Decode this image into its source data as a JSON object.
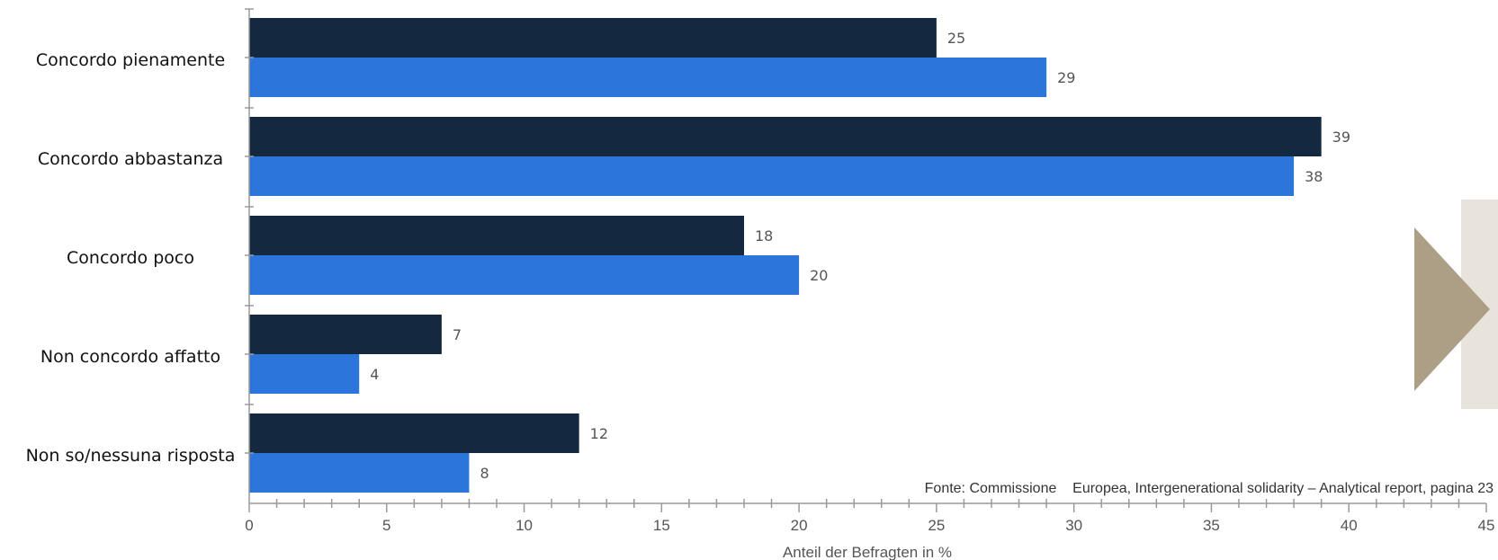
{
  "chart_data": {
    "type": "bar",
    "orientation": "horizontal",
    "categories": [
      "Concordo pienamente",
      "Concordo abbastanza",
      "Concordo poco",
      "Non concordo affatto",
      "Non so/nessuna risposta"
    ],
    "series": [
      {
        "values": [
          25,
          39,
          18,
          7,
          12
        ],
        "color": "#14283f"
      },
      {
        "values": [
          29,
          38,
          20,
          4,
          8
        ],
        "color": "#2b75db"
      }
    ],
    "xlabel": "Anteil der Befragten in %",
    "xlim": [
      0,
      45
    ],
    "xticks": [
      0,
      5,
      10,
      15,
      20,
      25,
      30,
      35,
      40,
      45
    ],
    "grid": false,
    "source": "Fonte: Commissione    Europea, Intergenerational solidarity – Analytical report, pagina 23"
  },
  "navigation": {
    "next_icon": "next-arrow-icon",
    "panel_color": "#e8e4dc",
    "arrow_color": "#ad9f85"
  }
}
